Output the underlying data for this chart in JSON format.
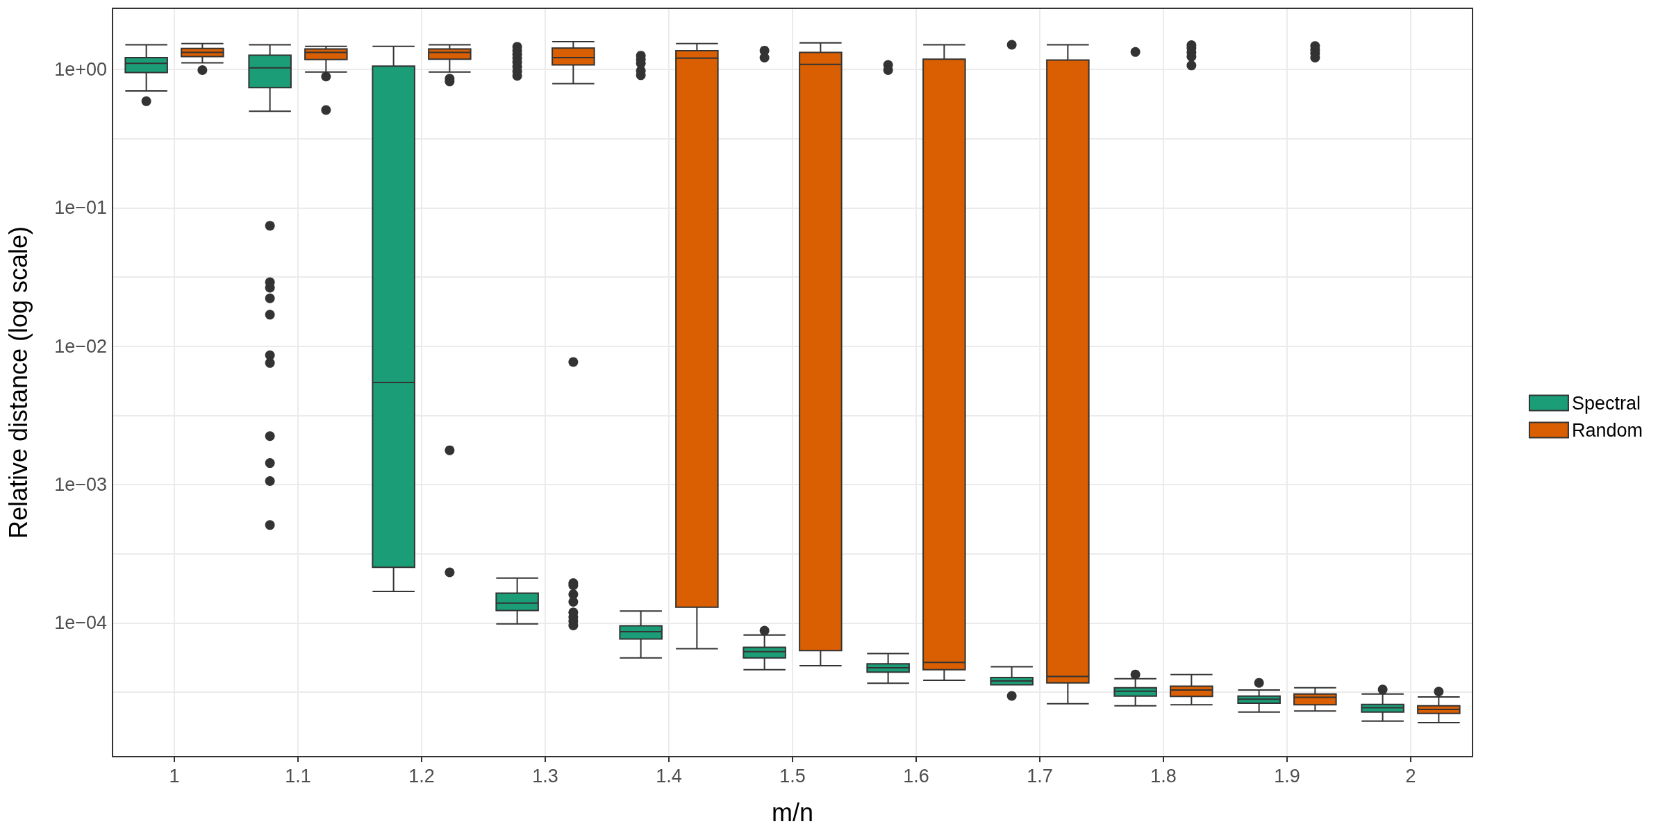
{
  "chart_data": {
    "type": "box",
    "xlabel": "m/n",
    "ylabel": "Relative distance (log scale)",
    "categories": [
      "1",
      "1.1",
      "1.2",
      "1.3",
      "1.4",
      "1.5",
      "1.6",
      "1.7",
      "1.8",
      "1.9",
      "2"
    ],
    "log": "y",
    "ylim": [
      1.08e-05,
      2.77
    ],
    "yticks": [
      {
        "value": 0.0001,
        "label": "1e−04"
      },
      {
        "value": 0.001,
        "label": "1e−03"
      },
      {
        "value": 0.01,
        "label": "1e−02"
      },
      {
        "value": 0.1,
        "label": "1e−01"
      },
      {
        "value": 1,
        "label": "1e+00"
      },
      {
        "value": 3.162e-05,
        "label": null
      },
      {
        "value": 0.0003162,
        "label": null
      },
      {
        "value": 0.003162,
        "label": null
      },
      {
        "value": 0.03162,
        "label": null
      },
      {
        "value": 0.3162,
        "label": null
      }
    ],
    "grid": true,
    "legend": "right",
    "series": [
      {
        "name": "Spectral",
        "color": "#1b9e77",
        "boxes": [
          {
            "low": 0.7,
            "q1": 0.95,
            "median": 1.11,
            "q3": 1.22,
            "high": 1.51,
            "outliers": [
              0.59
            ]
          },
          {
            "low": 0.5,
            "q1": 0.74,
            "median": 1.03,
            "q3": 1.27,
            "high": 1.51,
            "outliers": [
              0.0743,
              0.029,
              0.0265,
              0.0222,
              0.0169,
              0.00861,
              0.00757,
              0.00224,
              0.00143,
              0.00106,
              0.00051
            ]
          },
          {
            "low": 0.000169,
            "q1": 0.000252,
            "median": 0.00547,
            "q3": 1.06,
            "high": 1.47
          },
          {
            "low": 9.84e-05,
            "q1": 0.000123,
            "median": 0.000139,
            "q3": 0.000164,
            "high": 0.000211,
            "outliers": [
              1.46,
              1.37,
              1.29,
              1.21,
              1.13,
              1.05,
              0.97,
              0.9
            ]
          },
          {
            "low": 5.58e-05,
            "q1": 7.66e-05,
            "median": 8.65e-05,
            "q3": 9.52e-05,
            "high": 0.000122,
            "outliers": [
              1.26,
              1.18,
              1.11,
              0.98,
              0.91
            ]
          },
          {
            "low": 4.59e-05,
            "q1": 5.58e-05,
            "median": 6.2e-05,
            "q3": 6.67e-05,
            "high": 8.17e-05,
            "outliers": [
              1.37,
              1.22,
              8.79e-05
            ]
          },
          {
            "low": 3.66e-05,
            "q1": 4.41e-05,
            "median": 4.74e-05,
            "q3": 5.06e-05,
            "high": 6e-05,
            "outliers": [
              1.08,
              0.99
            ]
          },
          {
            "low": 3.57e-05,
            "q1": 3.57e-05,
            "median": 3.81e-05,
            "q3": 4.03e-05,
            "high": 4.82e-05,
            "outliers": [
              1.51,
              2.97e-05
            ]
          },
          {
            "low": 2.52e-05,
            "q1": 2.96e-05,
            "median": 3.21e-05,
            "q3": 3.4e-05,
            "high": 3.95e-05,
            "outliers": [
              1.34,
              4.24e-05
            ]
          },
          {
            "low": 2.27e-05,
            "q1": 2.63e-05,
            "median": 2.81e-05,
            "q3": 2.96e-05,
            "high": 3.27e-05,
            "outliers": [
              3.69e-05
            ]
          },
          {
            "low": 1.95e-05,
            "q1": 2.27e-05,
            "median": 2.44e-05,
            "q3": 2.58e-05,
            "high": 3.06e-05,
            "outliers": [
              3.3e-05
            ]
          }
        ]
      },
      {
        "name": "Random",
        "color": "#d95f02",
        "boxes": [
          {
            "low": 1.12,
            "q1": 1.24,
            "median": 1.33,
            "q3": 1.42,
            "high": 1.54,
            "outliers": [
              0.99
            ]
          },
          {
            "low": 0.96,
            "q1": 1.18,
            "median": 1.33,
            "q3": 1.41,
            "high": 1.47,
            "outliers": [
              0.89,
              0.51
            ]
          },
          {
            "low": 0.96,
            "q1": 1.19,
            "median": 1.33,
            "q3": 1.41,
            "high": 1.51,
            "outliers": [
              0.86,
              0.82,
              0.00177,
              0.000232
            ]
          },
          {
            "low": 0.79,
            "q1": 1.08,
            "median": 1.22,
            "q3": 1.43,
            "high": 1.59,
            "outliers": [
              0.00769,
              0.000194,
              0.000187,
              0.000161,
              0.000142,
              0.000119,
              0.00011,
              0.000103,
              9.6e-05
            ]
          },
          {
            "low": 6.52e-05,
            "q1": 0.00013,
            "median": 1.21,
            "q3": 1.37,
            "high": 1.54
          },
          {
            "low": 4.9e-05,
            "q1": 6.3e-05,
            "median": 1.09,
            "q3": 1.33,
            "high": 1.56
          },
          {
            "low": 3.85e-05,
            "q1": 4.59e-05,
            "median": 5.19e-05,
            "q3": 1.19,
            "high": 1.51
          },
          {
            "low": 2.61e-05,
            "q1": 3.69e-05,
            "median": 4.1e-05,
            "q3": 1.17,
            "high": 1.51
          },
          {
            "low": 2.56e-05,
            "q1": 2.94e-05,
            "median": 3.27e-05,
            "q3": 3.49e-05,
            "high": 4.24e-05,
            "outliers": [
              1.5,
              1.43,
              1.33,
              1.24,
              1.07
            ]
          },
          {
            "low": 2.31e-05,
            "q1": 2.56e-05,
            "median": 2.9e-05,
            "q3": 3.06e-05,
            "high": 3.4e-05,
            "outliers": [
              1.48,
              1.39,
              1.31,
              1.22
            ]
          },
          {
            "low": 1.9e-05,
            "q1": 2.22e-05,
            "median": 2.37e-05,
            "q3": 2.52e-05,
            "high": 2.92e-05,
            "outliers": [
              3.19e-05
            ]
          }
        ]
      }
    ]
  }
}
